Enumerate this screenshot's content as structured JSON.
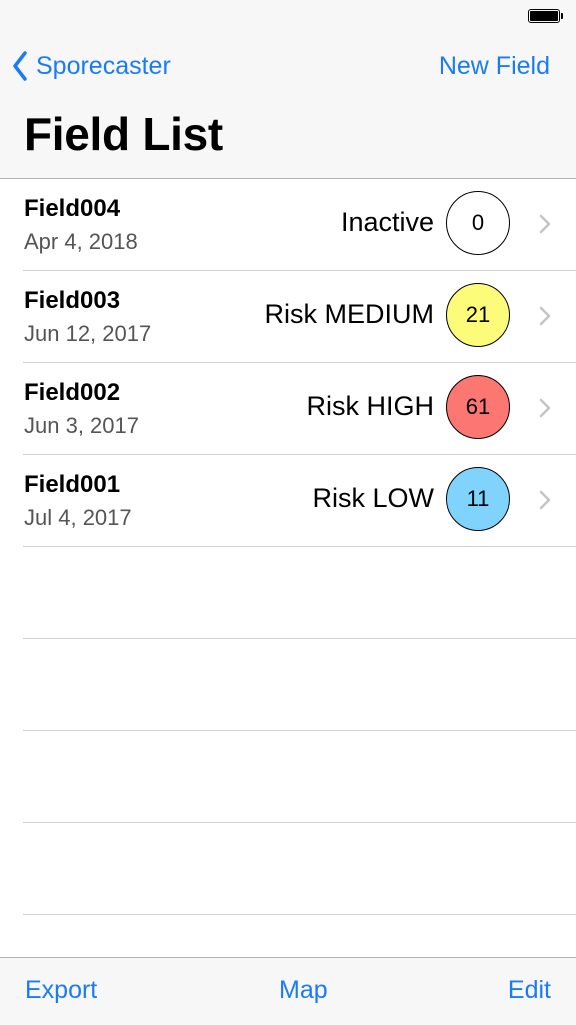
{
  "nav": {
    "back_label": "Sporecaster",
    "action_label": "New Field",
    "title": "Field List"
  },
  "fields": [
    {
      "name": "Field004",
      "date": "Apr 4, 2018",
      "status": "Inactive",
      "risk": "0",
      "color": "#ffffff"
    },
    {
      "name": "Field003",
      "date": "Jun 12, 2017",
      "status": "Risk MEDIUM",
      "risk": "21",
      "color": "#fdfb7a"
    },
    {
      "name": "Field002",
      "date": "Jun 3, 2017",
      "status": "Risk HIGH",
      "risk": "61",
      "color": "#fc7672"
    },
    {
      "name": "Field001",
      "date": "Jul 4, 2017",
      "status": "Risk LOW",
      "risk": "11",
      "color": "#7fd3fd"
    }
  ],
  "toolbar": {
    "export_label": "Export",
    "map_label": "Map",
    "edit_label": "Edit"
  },
  "icons": {
    "battery": "battery-icon",
    "back": "chevron-left-icon",
    "disclosure": "chevron-right-icon"
  },
  "colors": {
    "accent": "#1a7cf5",
    "bar_background": "#f7f7f7"
  }
}
